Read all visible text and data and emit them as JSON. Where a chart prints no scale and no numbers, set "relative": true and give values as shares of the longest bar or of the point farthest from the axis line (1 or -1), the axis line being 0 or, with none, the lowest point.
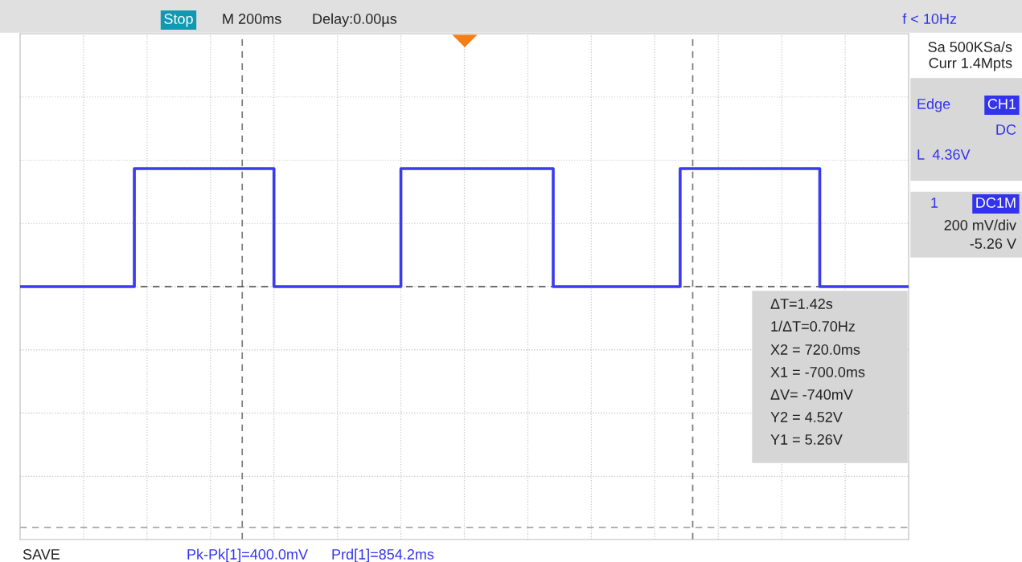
{
  "chart_data": {
    "type": "step",
    "relative": true,
    "categories": [
      null,
      null,
      null,
      null,
      null,
      null,
      null,
      null,
      null,
      null,
      null,
      null,
      null,
      null,
      null,
      null,
      null,
      null,
      null,
      null,
      null,
      null,
      null,
      null,
      null,
      null,
      null,
      null,
      null,
      null,
      null,
      null,
      null,
      null,
      null,
      null,
      null,
      null,
      null,
      null,
      null,
      null,
      null,
      null,
      null,
      null,
      null,
      null,
      null,
      null,
      null,
      null,
      null,
      null,
      null,
      null,
      null,
      null,
      null,
      null,
      null,
      null,
      null,
      null,
      null,
      null,
      null,
      null,
      null,
      null,
      null
    ],
    "values": [
      0,
      0,
      0,
      0,
      0,
      0,
      0,
      0,
      0,
      1,
      1,
      1,
      1,
      1,
      1,
      1,
      1,
      1,
      1,
      1,
      0,
      0,
      0,
      0,
      0,
      0,
      0,
      0,
      0,
      0,
      1,
      1,
      1,
      1,
      1,
      1,
      1,
      1,
      1,
      1,
      1,
      1,
      0,
      0,
      0,
      0,
      0,
      0,
      0,
      0,
      0,
      0,
      1,
      1,
      1,
      1,
      1,
      1,
      1,
      1,
      1,
      1,
      1,
      0,
      0,
      0,
      0,
      0,
      0,
      0,
      0
    ],
    "color": "#3a3af0",
    "tick_labels": false,
    "grid": true,
    "line_style": "solid",
    "marker": "none",
    "ref_lines": [
      {
        "axis": "y",
        "value": 0,
        "color": "#444444",
        "line_style": "dashed"
      },
      {
        "axis": "y",
        "value": -2.04,
        "color": "#999999",
        "line_style": "dashed"
      }
    ],
    "annotations": [
      "Stop",
      "M 200ms",
      "Delay:0.00µs",
      "f < 10Hz",
      "Sa 500KSa/s",
      "Curr 1.4Mpts",
      "Edge",
      "CH1",
      "DC",
      "L  4.36V",
      "1",
      "DC1M",
      "200 mV/div",
      "-5.26 V",
      "ΔT=1.42s",
      "1/ΔT=0.70Hz",
      "X2 = 720.0ms",
      "X1 = -700.0ms",
      "ΔV= -740mV",
      "Y2 = 4.52V",
      "Y1 = 5.26V",
      "SAVE",
      "Pk-Pk[1]=400.0mV",
      "Prd[1]=854.2ms"
    ]
  }
}
